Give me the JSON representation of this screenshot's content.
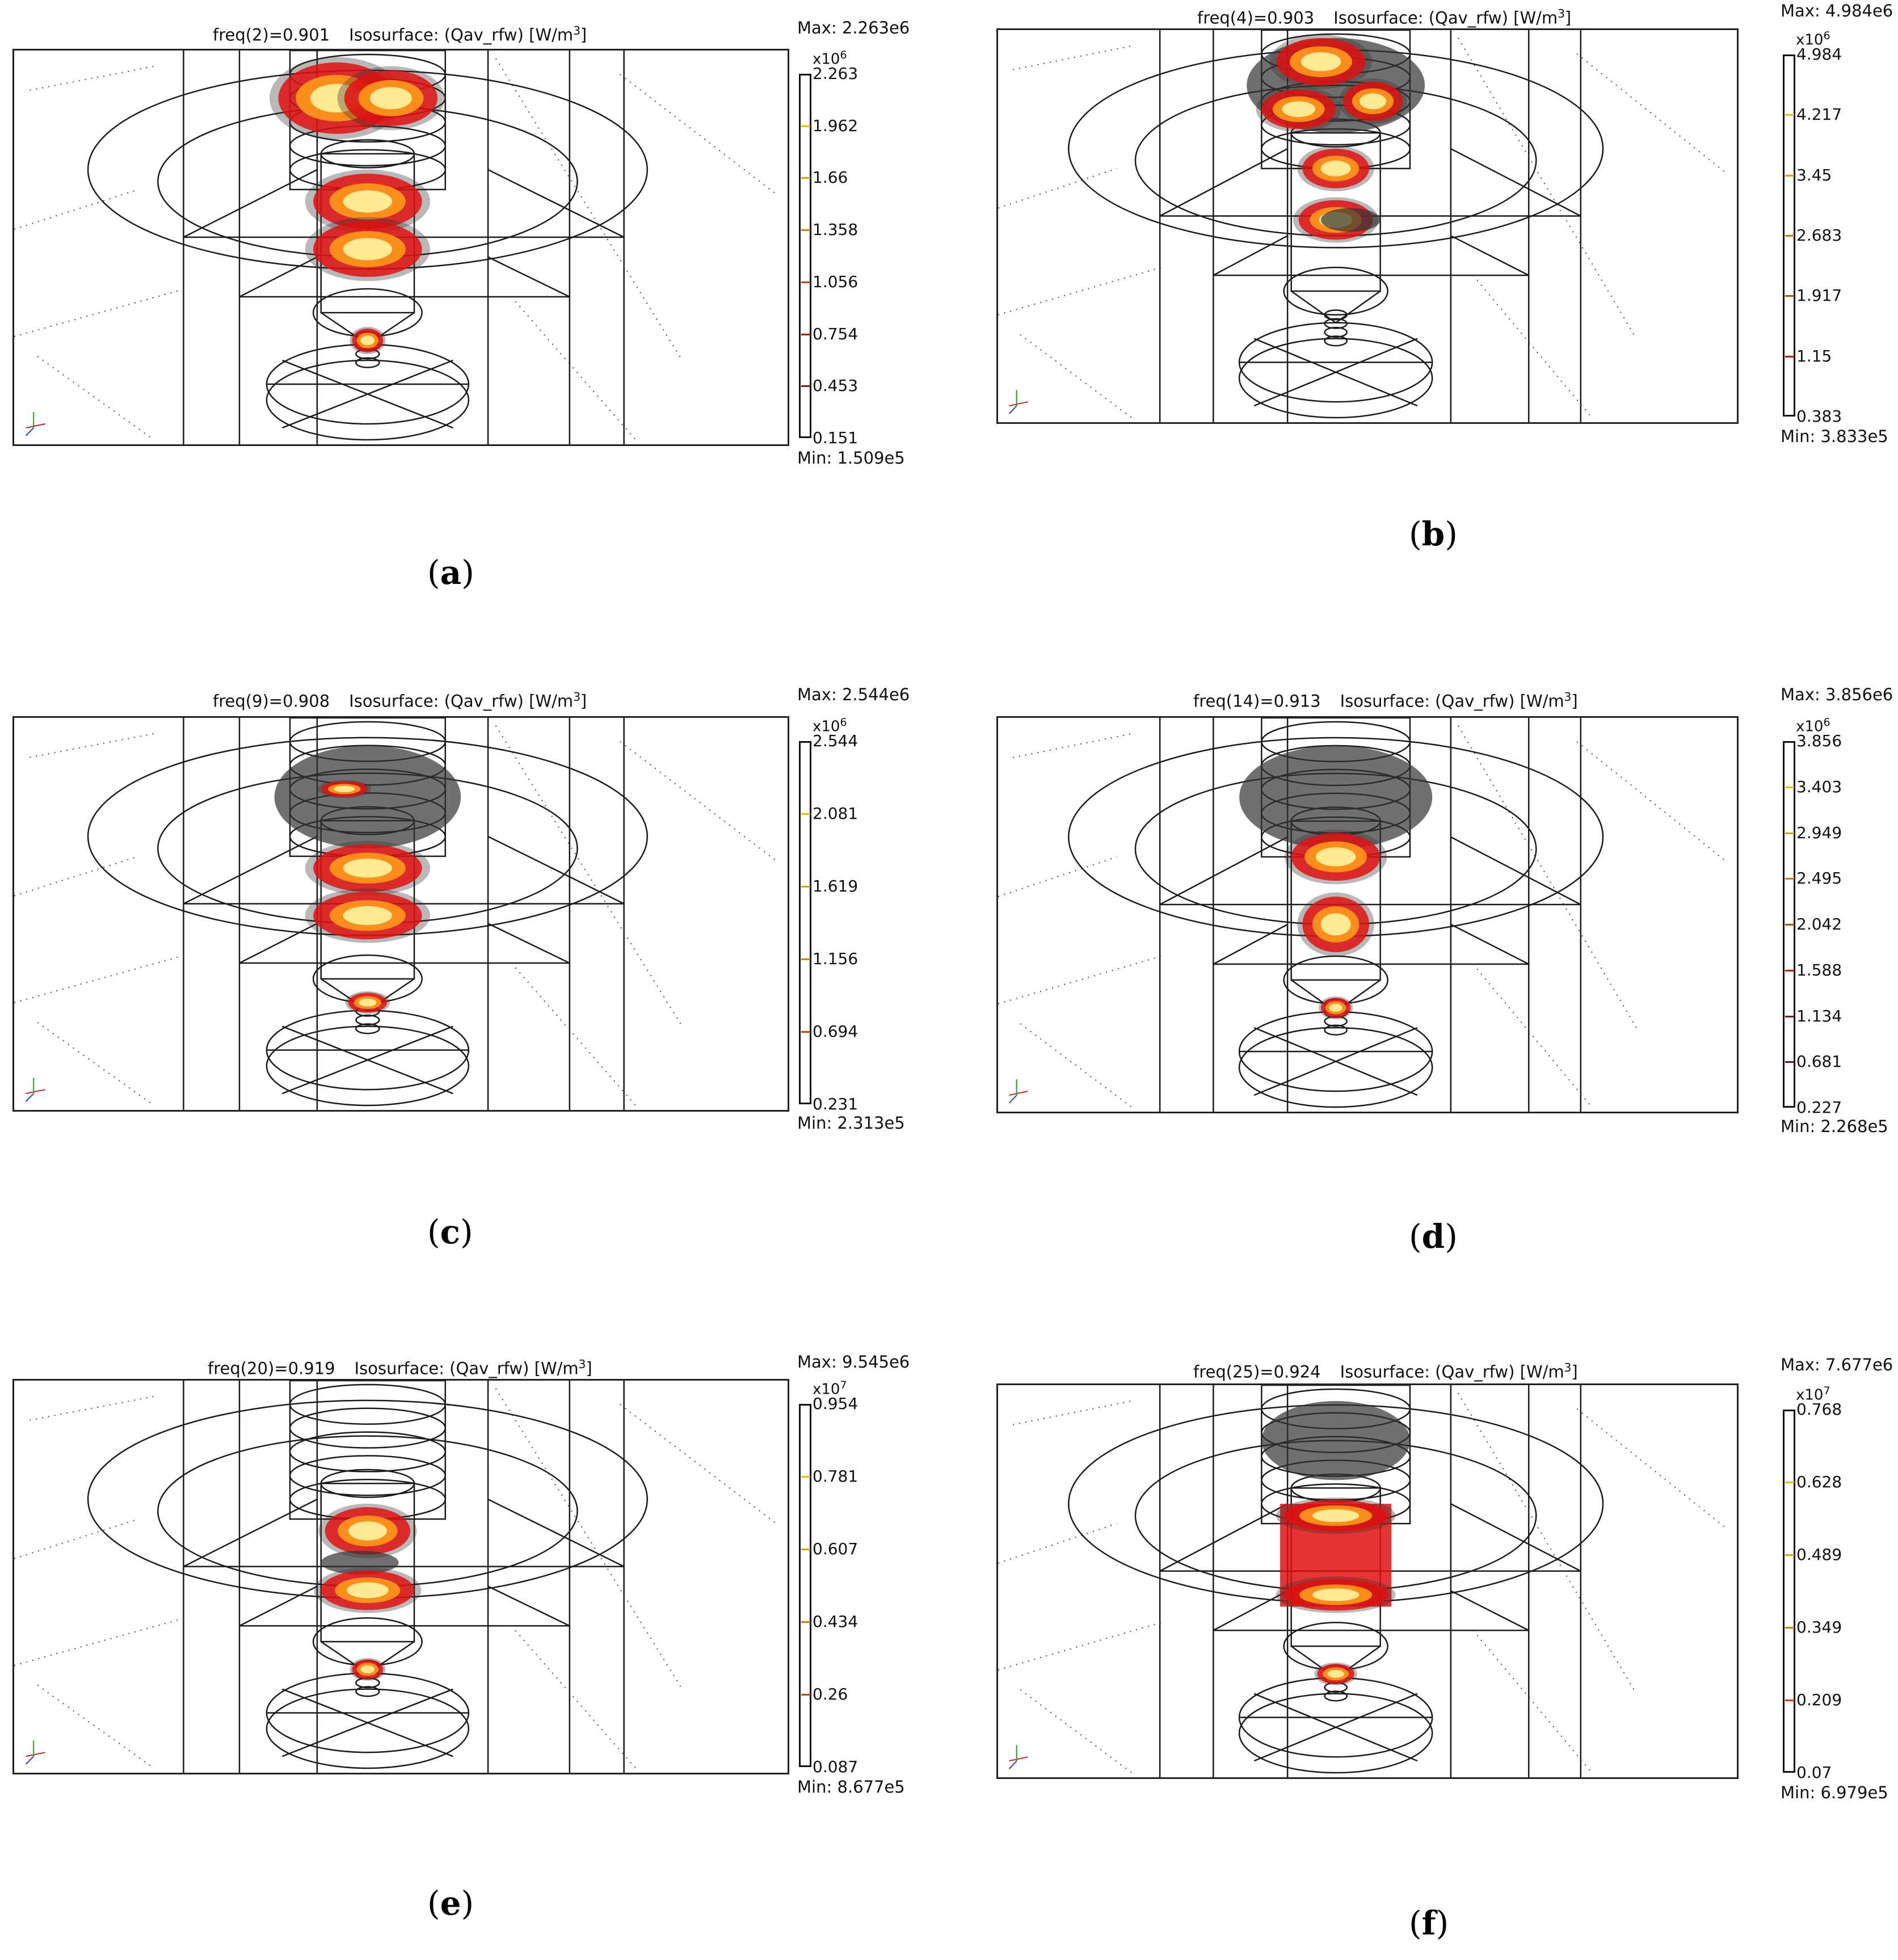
{
  "common": {
    "title_prefix": "Isosurface: (Qav_rfw) [W/m",
    "title_exp": "3",
    "title_suffix": "]"
  },
  "panels": [
    {
      "label": "a",
      "freq": "freq(2)=0.901",
      "max": "Max: 2.263e6",
      "min": "Min: 1.509e5",
      "mult_base": "x10",
      "mult_exp": "6",
      "ticks": [
        "2.263",
        "1.962",
        "1.66",
        "1.358",
        "1.056",
        "0.754",
        "0.453",
        "0.151"
      ]
    },
    {
      "label": "b",
      "freq": "freq(4)=0.903",
      "max": "Max: 4.984e6",
      "min": "Min: 3.833e5",
      "mult_base": "x10",
      "mult_exp": "6",
      "ticks": [
        "4.984",
        "4.217",
        "3.45",
        "2.683",
        "1.917",
        "1.15",
        "0.383"
      ]
    },
    {
      "label": "c",
      "freq": "freq(9)=0.908",
      "max": "Max: 2.544e6",
      "min": "Min: 2.313e5",
      "mult_base": "x10",
      "mult_exp": "6",
      "ticks": [
        "2.544",
        "2.081",
        "1.619",
        "1.156",
        "0.694",
        "0.231"
      ]
    },
    {
      "label": "d",
      "freq": "freq(14)=0.913",
      "max": "Max: 3.856e6",
      "min": "Min: 2.268e5",
      "mult_base": "x10",
      "mult_exp": "6",
      "ticks": [
        "3.856",
        "3.403",
        "2.949",
        "2.495",
        "2.042",
        "1.588",
        "1.134",
        "0.681",
        "0.227"
      ]
    },
    {
      "label": "e",
      "freq": "freq(20)=0.919",
      "max": "Max: 9.545e6",
      "min": "Min: 8.677e5",
      "mult_base": "x10",
      "mult_exp": "7",
      "ticks": [
        "0.954",
        "0.781",
        "0.607",
        "0.434",
        "0.26",
        "0.087"
      ]
    },
    {
      "label": "f",
      "freq": "freq(25)=0.924",
      "max": "Max: 7.677e6",
      "min": "Min: 6.979e5",
      "mult_base": "x10",
      "mult_exp": "7",
      "ticks": [
        "0.768",
        "0.628",
        "0.489",
        "0.349",
        "0.209",
        "0.07"
      ]
    }
  ],
  "colors": {
    "frame": "#222222",
    "wire": "#1a1a1a",
    "hot_core": "#fff3a0",
    "hot_mid": "#ff9a1a",
    "hot_outer": "#e01010",
    "dark": "#333333"
  }
}
